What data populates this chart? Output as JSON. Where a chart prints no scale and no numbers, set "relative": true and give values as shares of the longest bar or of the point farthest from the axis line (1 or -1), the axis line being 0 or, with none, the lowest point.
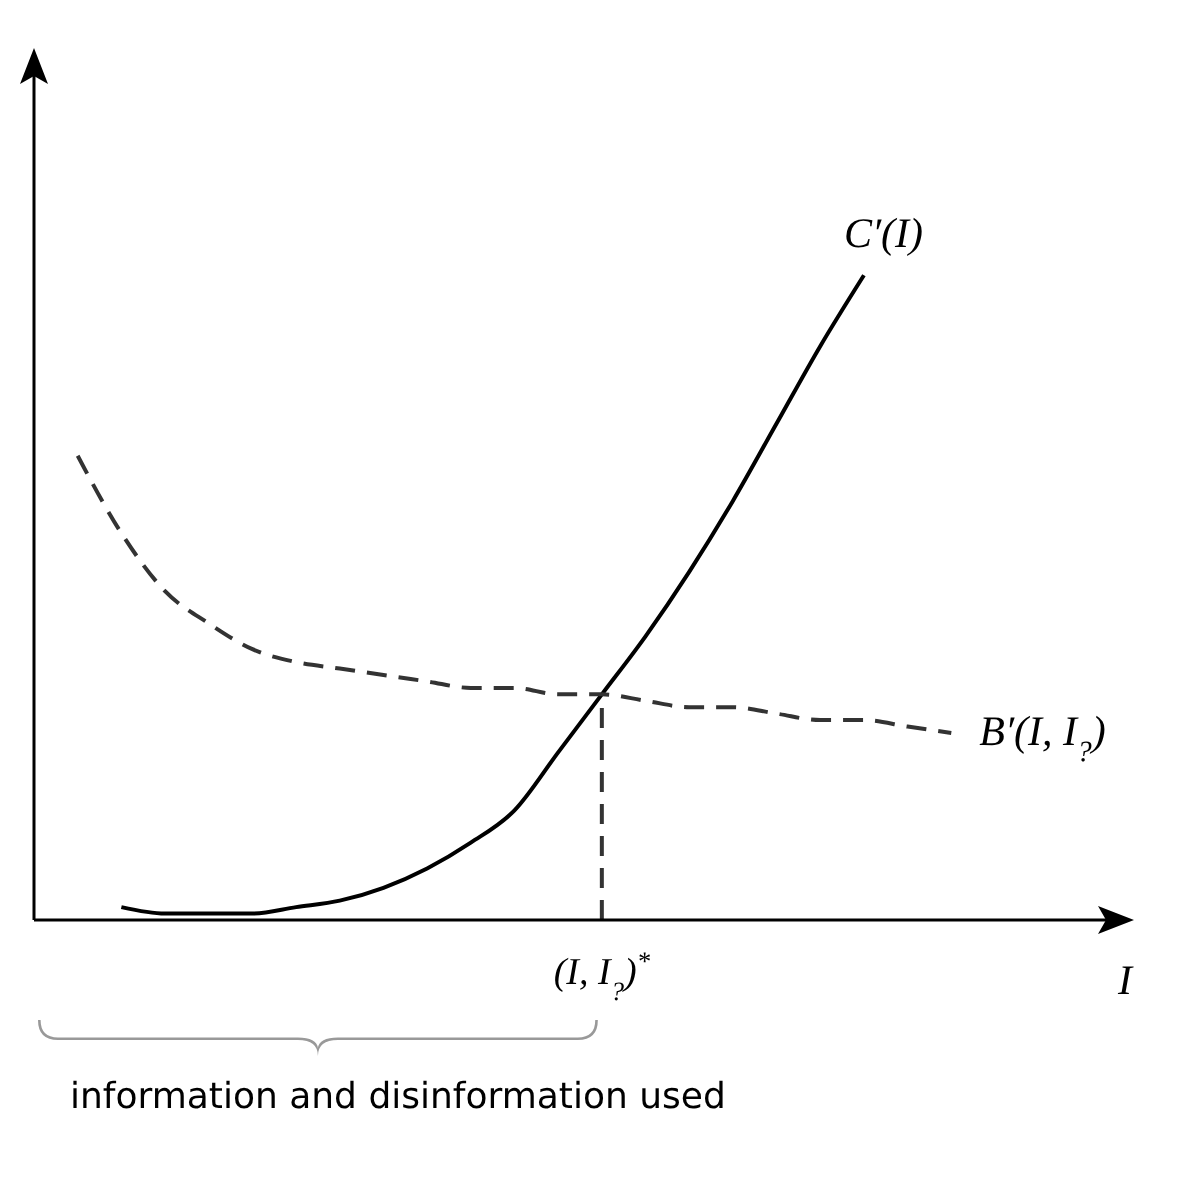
{
  "chart_data": {
    "type": "line",
    "relative": true,
    "xlabel": "I",
    "marker": "none",
    "categories": [
      null,
      null,
      null,
      null,
      null,
      null,
      null,
      null,
      null,
      null,
      null,
      null,
      null,
      null,
      null,
      null,
      null,
      null,
      null,
      null,
      null,
      null,
      null,
      null,
      null,
      null
    ],
    "series": [
      {
        "name": "C′(I)",
        "color": "#000000",
        "line_style": "solid",
        "values": [
          null,
          null,
          0.02,
          0.01,
          0.01,
          0.01,
          0.02,
          0.03,
          0.05,
          0.08,
          0.12,
          0.17,
          0.26,
          0.35,
          0.44,
          0.54,
          0.65,
          0.77,
          0.89,
          1,
          null,
          null,
          null,
          null,
          null,
          null
        ]
      },
      {
        "name": "B′(I, I$_{?}$)",
        "color": "#333333",
        "line_style": "dashed",
        "values": [
          null,
          0.72,
          0.6,
          0.51,
          0.46,
          0.42,
          0.4,
          0.39,
          0.38,
          0.37,
          0.36,
          0.36,
          0.35,
          0.35,
          0.34,
          0.33,
          0.33,
          0.32,
          0.31,
          0.31,
          0.3,
          0.29,
          null,
          null,
          null,
          null
        ]
      }
    ],
    "ref_lines": [
      {
        "axis": "x",
        "label": "(I, I$_{?}$)$^{*}$",
        "line_style": "dashed",
        "color": "#333333"
      }
    ],
    "annotations": [
      "information and disinformation used"
    ]
  }
}
